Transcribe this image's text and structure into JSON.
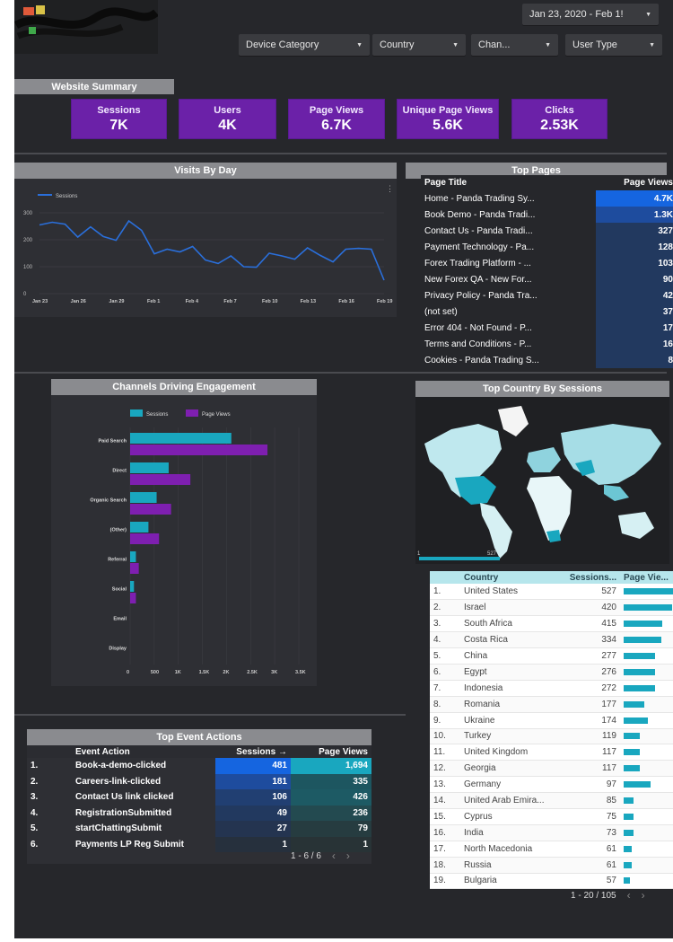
{
  "header": {
    "date_range": "Jan 23, 2020 - Feb 1!",
    "filters": [
      "Device Category",
      "Country",
      "Chan...",
      "User Type"
    ]
  },
  "summary": {
    "label": "Website Summary",
    "cards": [
      {
        "title": "Sessions",
        "value": "7K"
      },
      {
        "title": "Users",
        "value": "4K"
      },
      {
        "title": "Page Views",
        "value": "6.7K"
      },
      {
        "title": "Unique Page Views",
        "value": "5.6K"
      },
      {
        "title": "Clicks",
        "value": "2.53K"
      }
    ]
  },
  "visits_by_day": {
    "title": "Visits By Day",
    "chart_data": {
      "type": "line",
      "legend": [
        "Sessions"
      ],
      "x_labels": [
        "Jan 23",
        "Jan 26",
        "Jan 29",
        "Feb 1",
        "Feb 4",
        "Feb 7",
        "Feb 10",
        "Feb 13",
        "Feb 16",
        "Feb 19"
      ],
      "y_ticks": [
        "300",
        "200",
        "100",
        "0"
      ],
      "ylim": [
        0,
        320
      ],
      "values": [
        255,
        265,
        258,
        210,
        248,
        212,
        198,
        270,
        235,
        148,
        165,
        155,
        175,
        125,
        112,
        140,
        100,
        98,
        150,
        140,
        128,
        170,
        142,
        118,
        165,
        168,
        165,
        50
      ]
    }
  },
  "top_pages": {
    "title": "Top Pages",
    "columns": [
      "Page Title",
      "Page Views"
    ],
    "rows": [
      {
        "name": "Home - Panda Trading Sy...",
        "value": "4.7K",
        "share": 1.0
      },
      {
        "name": "Book Demo - Panda Tradi...",
        "value": "1.3K",
        "share": 0.28
      },
      {
        "name": "Contact Us - Panda Tradi...",
        "value": "327",
        "share": 0.07
      },
      {
        "name": "Payment Technology - Pa...",
        "value": "128",
        "share": 0.03
      },
      {
        "name": "Forex Trading Platform - ...",
        "value": "103",
        "share": 0.02
      },
      {
        "name": "New Forex QA - New For...",
        "value": "90",
        "share": 0.02
      },
      {
        "name": "Privacy Policy - Panda Tra...",
        "value": "42",
        "share": 0.01
      },
      {
        "name": "(not set)",
        "value": "37",
        "share": 0.01
      },
      {
        "name": "Error 404 - Not Found - P...",
        "value": "17",
        "share": 0.0
      },
      {
        "name": "Terms and Conditions - P...",
        "value": "16",
        "share": 0.0
      },
      {
        "name": "Cookies - Panda Trading S...",
        "value": "8",
        "share": 0.0
      }
    ],
    "colors": {
      "top": "#1565e0",
      "second": "#1e4c9e",
      "rest": "#22395f"
    }
  },
  "channels": {
    "title": "Channels Driving Engagement",
    "chart_data": {
      "type": "bar",
      "orientation": "horizontal",
      "categories": [
        "Paid Search",
        "Direct",
        "Organic Search",
        "(Other)",
        "Referral",
        "Social",
        "Email",
        "Display"
      ],
      "series": [
        {
          "name": "Sessions",
          "color": "#19a7bf",
          "values": [
            2100,
            800,
            550,
            380,
            120,
            80,
            0,
            0
          ]
        },
        {
          "name": "Page Views",
          "color": "#7e1fb0",
          "values": [
            2850,
            1250,
            850,
            600,
            180,
            120,
            0,
            0
          ]
        }
      ],
      "x_ticks": [
        "0",
        "500",
        "1K",
        "1.5K",
        "2K",
        "2.5K",
        "3K",
        "3.5K"
      ],
      "xlim": [
        0,
        3500
      ]
    }
  },
  "top_country": {
    "title": "Top Country By Sessions",
    "legend_min": "1",
    "legend_max": "527",
    "columns": [
      "Country",
      "Sessions...",
      "Page Vie..."
    ],
    "rows": [
      {
        "rank": "1.",
        "country": "United States",
        "sessions": "527",
        "pv": 0.97
      },
      {
        "rank": "2.",
        "country": "Israel",
        "sessions": "420",
        "pv": 0.9
      },
      {
        "rank": "3.",
        "country": "South Africa",
        "sessions": "415",
        "pv": 0.72
      },
      {
        "rank": "4.",
        "country": "Costa Rica",
        "sessions": "334",
        "pv": 0.7
      },
      {
        "rank": "5.",
        "country": "China",
        "sessions": "277",
        "pv": 0.58
      },
      {
        "rank": "6.",
        "country": "Egypt",
        "sessions": "276",
        "pv": 0.58
      },
      {
        "rank": "7.",
        "country": "Indonesia",
        "sessions": "272",
        "pv": 0.58
      },
      {
        "rank": "8.",
        "country": "Romania",
        "sessions": "177",
        "pv": 0.38
      },
      {
        "rank": "9.",
        "country": "Ukraine",
        "sessions": "174",
        "pv": 0.45
      },
      {
        "rank": "10.",
        "country": "Turkey",
        "sessions": "119",
        "pv": 0.3
      },
      {
        "rank": "11.",
        "country": "United Kingdom",
        "sessions": "117",
        "pv": 0.3
      },
      {
        "rank": "12.",
        "country": "Georgia",
        "sessions": "117",
        "pv": 0.3
      },
      {
        "rank": "13.",
        "country": "Germany",
        "sessions": "97",
        "pv": 0.5
      },
      {
        "rank": "14.",
        "country": "United Arab Emira...",
        "sessions": "85",
        "pv": 0.18
      },
      {
        "rank": "15.",
        "country": "Cyprus",
        "sessions": "75",
        "pv": 0.18
      },
      {
        "rank": "16.",
        "country": "India",
        "sessions": "73",
        "pv": 0.18
      },
      {
        "rank": "17.",
        "country": "North Macedonia",
        "sessions": "61",
        "pv": 0.15
      },
      {
        "rank": "18.",
        "country": "Russia",
        "sessions": "61",
        "pv": 0.15
      },
      {
        "rank": "19.",
        "country": "Bulgaria",
        "sessions": "57",
        "pv": 0.12
      }
    ],
    "pager": "1 - 20 / 105"
  },
  "top_events": {
    "title": "Top Event Actions",
    "columns": [
      "Event Action",
      "Sessions →",
      "Page Views"
    ],
    "rows": [
      {
        "rank": "1.",
        "action": "Book-a-demo-clicked",
        "sessions": "481",
        "pv": "1,694",
        "s_color": "#1565e0",
        "p_color": "#19a7bf"
      },
      {
        "rank": "2.",
        "action": "Careers-link-clicked",
        "sessions": "181",
        "pv": "335",
        "s_color": "#1e4c9e",
        "p_color": "#1d5660"
      },
      {
        "rank": "3.",
        "action": "Contact Us link clicked",
        "sessions": "106",
        "pv": "426",
        "s_color": "#213f72",
        "p_color": "#1d5a64"
      },
      {
        "rank": "4.",
        "action": "RegistrationSubmitted",
        "sessions": "49",
        "pv": "236",
        "s_color": "#22395f",
        "p_color": "#234a50"
      },
      {
        "rank": "5.",
        "action": "startChattingSubmit",
        "sessions": "27",
        "pv": "79",
        "s_color": "#243450",
        "p_color": "#263c40"
      },
      {
        "rank": "6.",
        "action": "Payments LP Reg Submit",
        "sessions": "1",
        "pv": "1",
        "s_color": "#26303d",
        "p_color": "#283336"
      }
    ],
    "pager": "1 - 6 / 6"
  }
}
